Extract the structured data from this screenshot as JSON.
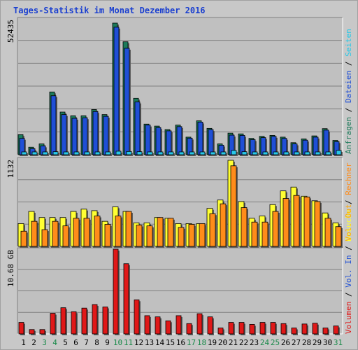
{
  "title": "Tages-Statistik im Monat Dezember 2016",
  "colors": {
    "anfragen": "#1c7a5a",
    "dateien": "#1f4fd6",
    "seiten": "#28c8e8",
    "besuche": "#ffff33",
    "rechner": "#ff8c1a",
    "out": "#ffaa00",
    "in": "#1f4fd6",
    "volumen": "#e01818",
    "weekend_label": "#1a8a4a",
    "weekday_label": "#000000"
  },
  "legend_top": [
    "Anfragen",
    "Dateien",
    "Seiten"
  ],
  "legend_mid": [
    "Besuche",
    "Rechner"
  ],
  "legend_bot": [
    "Volumen",
    "Vol. In",
    "Vol. Out"
  ],
  "legend_separator": "/",
  "chart_data": [
    {
      "type": "bar",
      "panel": "hits",
      "max_label": "52435",
      "ylim": [
        0,
        52435
      ],
      "categories": [
        "1",
        "2",
        "3",
        "4",
        "5",
        "6",
        "7",
        "8",
        "9",
        "10",
        "11",
        "12",
        "13",
        "14",
        "15",
        "16",
        "17",
        "18",
        "19",
        "20",
        "21",
        "22",
        "23",
        "24",
        "25",
        "26",
        "27",
        "28",
        "29",
        "30",
        "31"
      ],
      "weekend": [
        3,
        4,
        10,
        11,
        17,
        18,
        24,
        25,
        31
      ],
      "series": [
        {
          "name": "Anfragen",
          "values": [
            8000,
            3000,
            4300,
            25000,
            17000,
            15500,
            15500,
            18000,
            16000,
            52435,
            45000,
            22500,
            12200,
            11400,
            10000,
            11800,
            7000,
            13500,
            10500,
            4300,
            8600,
            8300,
            6500,
            7300,
            7700,
            7000,
            4800,
            6300,
            7500,
            10400,
            5700
          ]
        },
        {
          "name": "Dateien",
          "values": [
            6500,
            2400,
            3500,
            23500,
            16000,
            14500,
            14700,
            17200,
            15300,
            50800,
            42400,
            21000,
            11800,
            10800,
            9500,
            11200,
            6600,
            13000,
            10000,
            3800,
            7800,
            7700,
            6000,
            6800,
            7300,
            6500,
            4300,
            5800,
            7000,
            9800,
            5200
          ]
        },
        {
          "name": "Seiten",
          "values": [
            1100,
            300,
            400,
            1200,
            1100,
            1100,
            800,
            1000,
            800,
            1400,
            1300,
            1200,
            700,
            700,
            600,
            800,
            500,
            700,
            500,
            300,
            1700,
            1200,
            500,
            800,
            700,
            700,
            500,
            500,
            700,
            800,
            1700
          ]
        }
      ]
    },
    {
      "type": "bar",
      "panel": "visits",
      "max_label": "1132",
      "ylim": [
        0,
        1132
      ],
      "categories": [
        "1",
        "2",
        "3",
        "4",
        "5",
        "6",
        "7",
        "8",
        "9",
        "10",
        "11",
        "12",
        "13",
        "14",
        "15",
        "16",
        "17",
        "18",
        "19",
        "20",
        "21",
        "22",
        "23",
        "24",
        "25",
        "26",
        "27",
        "28",
        "29",
        "30",
        "31"
      ],
      "series": [
        {
          "name": "Besuche",
          "values": [
            300,
            460,
            380,
            380,
            380,
            460,
            490,
            470,
            330,
            520,
            460,
            310,
            310,
            380,
            370,
            300,
            300,
            300,
            500,
            610,
            1132,
            590,
            370,
            400,
            550,
            730,
            780,
            660,
            600,
            440,
            310
          ]
        },
        {
          "name": "Rechner",
          "values": [
            200,
            330,
            220,
            330,
            270,
            370,
            370,
            400,
            290,
            400,
            460,
            280,
            270,
            380,
            370,
            250,
            290,
            300,
            430,
            560,
            1060,
            510,
            320,
            320,
            460,
            630,
            670,
            650,
            590,
            370,
            260
          ]
        }
      ]
    },
    {
      "type": "bar",
      "panel": "volume",
      "max_label": "10.68 GB",
      "ylim": [
        0,
        10.68
      ],
      "categories": [
        "1",
        "2",
        "3",
        "4",
        "5",
        "6",
        "7",
        "8",
        "9",
        "10",
        "11",
        "12",
        "13",
        "14",
        "15",
        "16",
        "17",
        "18",
        "19",
        "20",
        "21",
        "22",
        "23",
        "24",
        "25",
        "26",
        "27",
        "28",
        "29",
        "30",
        "31"
      ],
      "series": [
        {
          "name": "Volumen",
          "values": [
            1.45,
            0.55,
            0.55,
            2.6,
            3.3,
            2.8,
            3.25,
            3.7,
            3.4,
            10.68,
            8.85,
            4.3,
            2.3,
            2.15,
            1.65,
            2.3,
            1.3,
            2.55,
            2.15,
            0.75,
            1.45,
            1.45,
            1.2,
            1.45,
            1.45,
            1.3,
            0.75,
            1.25,
            1.35,
            0.75,
            1.0
          ]
        }
      ]
    }
  ]
}
